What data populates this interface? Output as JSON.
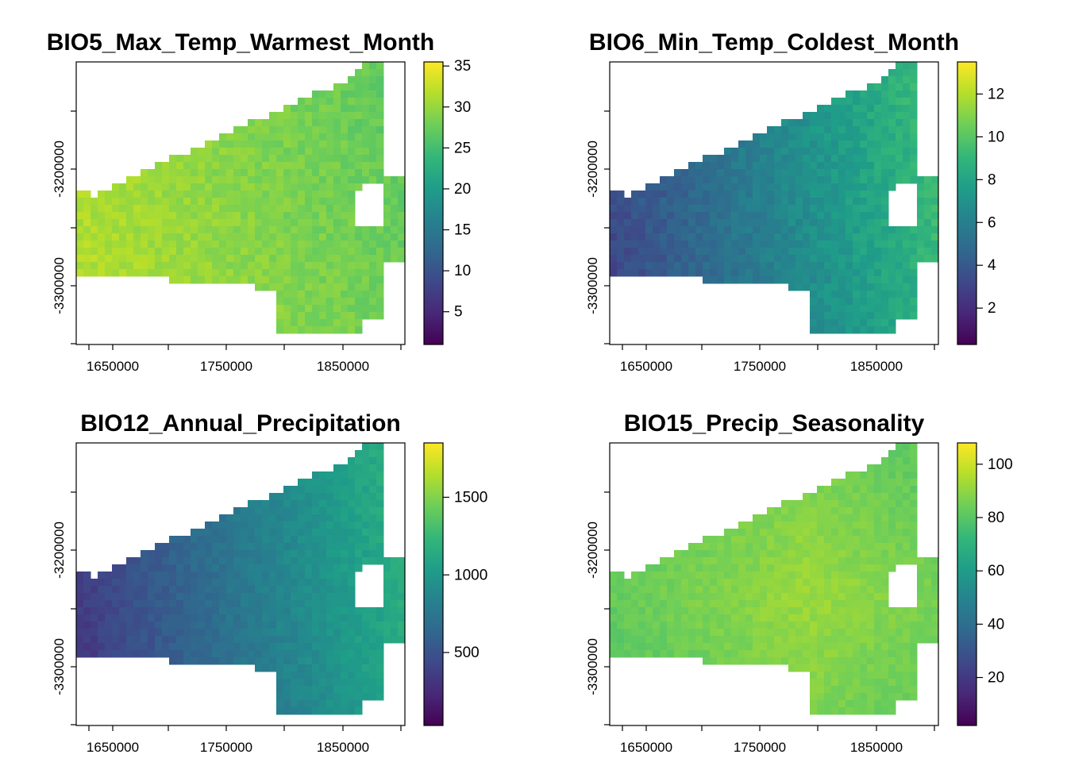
{
  "panels": [
    {
      "title": "BIO5_Max_Temp_Warmest_Month",
      "x_ticks": [
        "1650000",
        "1750000",
        "1850000"
      ],
      "y_ticks": [
        "-3200000",
        "-3300000"
      ],
      "legend": {
        "min": 1,
        "max": 35.5,
        "ticks": [
          "5",
          "10",
          "15",
          "20",
          "25",
          "30",
          "35"
        ]
      },
      "field": {
        "base": 0.82,
        "gradient": "west-high",
        "spread": 0.07
      }
    },
    {
      "title": "BIO6_Min_Temp_Coldest_Month",
      "x_ticks": [
        "1650000",
        "1750000",
        "1850000"
      ],
      "y_ticks": [
        "-3200000",
        "-3300000"
      ],
      "legend": {
        "min": 0.3,
        "max": 13.5,
        "ticks": [
          "2",
          "4",
          "6",
          "8",
          "10",
          "12"
        ]
      },
      "field": {
        "base": 0.45,
        "gradient": "east-high",
        "spread": 0.08
      }
    },
    {
      "title": "BIO12_Annual_Precipitation",
      "x_ticks": [
        "1650000",
        "1750000",
        "1850000"
      ],
      "y_ticks": [
        "-3200000",
        "-3300000"
      ],
      "legend": {
        "min": 30,
        "max": 1850,
        "ticks": [
          "500",
          "1000",
          "1500"
        ]
      },
      "field": {
        "base": 0.4,
        "gradient": "east-high",
        "spread": 0.06
      }
    },
    {
      "title": "BIO15_Precip_Seasonality",
      "x_ticks": [
        "1650000",
        "1750000",
        "1850000"
      ],
      "y_ticks": [
        "-3200000",
        "-3300000"
      ],
      "legend": {
        "min": 2,
        "max": 108,
        "ticks": [
          "20",
          "40",
          "60",
          "80",
          "100"
        ]
      },
      "field": {
        "base": 0.85,
        "gradient": "center-high",
        "spread": 0.05
      }
    }
  ],
  "colors": {
    "viridis": [
      "#440154",
      "#482878",
      "#3e4989",
      "#31688e",
      "#26828e",
      "#1f9e89",
      "#35b779",
      "#6ece58",
      "#b5de2b",
      "#fde725"
    ],
    "axis": "#000000"
  }
}
